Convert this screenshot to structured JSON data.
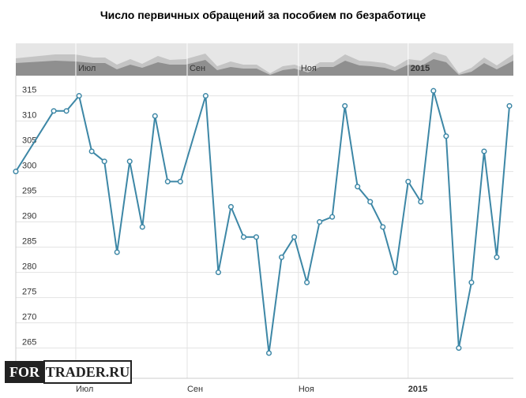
{
  "chart_data": {
    "type": "line",
    "title": "Число первичных обращений за пособием по безработице",
    "x": [
      0,
      3,
      4,
      5,
      6,
      7,
      8,
      9,
      10,
      11,
      12,
      13,
      15,
      16,
      17,
      18,
      19,
      20,
      21,
      22,
      23,
      24,
      25,
      26,
      27,
      28,
      29,
      30,
      31,
      32,
      33,
      34,
      35,
      36,
      37,
      38,
      39
    ],
    "series": [
      {
        "name": "Число первичных обращений",
        "color": "#3d87a6",
        "values": [
          300,
          312,
          312,
          315,
          304,
          302,
          284,
          302,
          289,
          311,
          298,
          298,
          315,
          280,
          293,
          287,
          287,
          264,
          283,
          287,
          278,
          290,
          291,
          313,
          297,
          294,
          289,
          280,
          298,
          294,
          316,
          307,
          265,
          278,
          304,
          283,
          313
        ]
      }
    ],
    "xlim": [
      0,
      39
    ],
    "xticks": [
      {
        "value": 4.74,
        "label": "Июл"
      },
      {
        "value": 13.54,
        "label": "Сен"
      },
      {
        "value": 22.33,
        "label": "Ноя"
      },
      {
        "value": 31,
        "label": "2015"
      }
    ],
    "ylim": [
      259,
      319
    ],
    "yticks": [
      265,
      270,
      275,
      280,
      285,
      290,
      295,
      300,
      305,
      310,
      315
    ],
    "grid": true,
    "watermark": [
      "FOR",
      "TRADER.RU"
    ]
  }
}
